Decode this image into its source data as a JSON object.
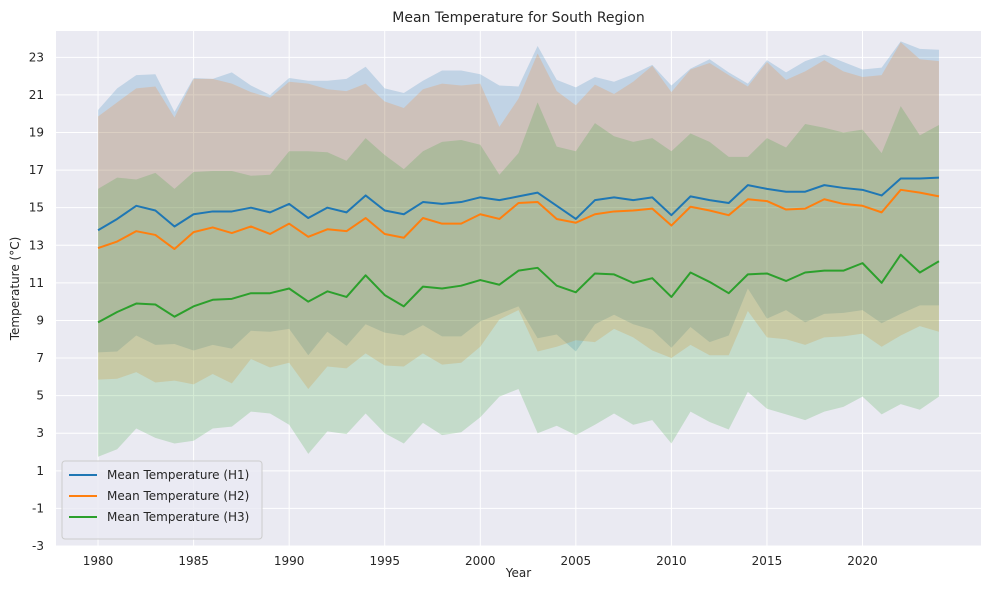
{
  "chart_data": {
    "type": "line",
    "title": "Mean Temperature for South Region",
    "xlabel": "Year",
    "ylabel": "Temperature (°C)",
    "xlim": [
      1977.8,
      2026.2
    ],
    "ylim": [
      -3,
      24.4
    ],
    "x_ticks": [
      1980,
      1985,
      1990,
      1995,
      2000,
      2005,
      2010,
      2015,
      2020
    ],
    "y_ticks": [
      -3,
      -1,
      1,
      3,
      5,
      7,
      9,
      11,
      13,
      15,
      17,
      19,
      21,
      23
    ],
    "grid": true,
    "legend_position": "lower-left",
    "x": [
      1980,
      1981,
      1982,
      1983,
      1984,
      1985,
      1986,
      1987,
      1988,
      1989,
      1990,
      1991,
      1992,
      1993,
      1994,
      1995,
      1996,
      1997,
      1998,
      1999,
      2000,
      2001,
      2002,
      2003,
      2004,
      2005,
      2006,
      2007,
      2008,
      2009,
      2010,
      2011,
      2012,
      2013,
      2014,
      2015,
      2016,
      2017,
      2018,
      2019,
      2020,
      2021,
      2022,
      2023,
      2024
    ],
    "series": [
      {
        "name": "Mean Temperature (H1)",
        "color": "#1f77b4",
        "values": [
          13.8,
          14.4,
          15.1,
          14.85,
          14.0,
          14.65,
          14.8,
          14.8,
          15.0,
          14.75,
          15.2,
          14.45,
          15.0,
          14.75,
          15.65,
          14.85,
          14.65,
          15.3,
          15.2,
          15.3,
          15.55,
          15.4,
          15.6,
          15.8,
          15.1,
          14.4,
          15.4,
          15.55,
          15.4,
          15.55,
          14.6,
          15.6,
          15.4,
          15.25,
          16.2,
          16.0,
          15.85,
          15.85,
          16.2,
          16.05,
          15.95,
          15.65,
          16.55,
          16.55,
          16.6
        ],
        "upper": [
          20.2,
          21.35,
          22.05,
          22.1,
          20.1,
          21.9,
          21.85,
          22.2,
          21.5,
          21.0,
          21.9,
          21.75,
          21.75,
          21.85,
          22.5,
          21.35,
          21.1,
          21.75,
          22.3,
          22.3,
          22.1,
          21.5,
          21.45,
          23.6,
          21.8,
          21.4,
          21.95,
          21.7,
          22.1,
          22.6,
          21.5,
          22.4,
          22.9,
          22.2,
          21.6,
          22.85,
          22.2,
          22.8,
          23.15,
          22.75,
          22.35,
          22.45,
          23.85,
          23.45,
          23.4
        ],
        "lower": [
          7.3,
          7.35,
          8.2,
          7.7,
          7.75,
          7.4,
          7.7,
          7.5,
          8.45,
          8.4,
          8.55,
          7.15,
          8.4,
          7.65,
          8.8,
          8.35,
          8.2,
          8.75,
          8.15,
          8.15,
          8.95,
          9.35,
          9.75,
          8.05,
          8.25,
          7.35,
          8.8,
          9.3,
          8.8,
          8.5,
          7.55,
          8.65,
          7.85,
          8.2,
          10.7,
          9.1,
          9.55,
          8.9,
          9.35,
          9.4,
          9.55,
          8.85,
          9.35,
          9.8,
          9.8
        ]
      },
      {
        "name": "Mean Temperature (H2)",
        "color": "#ff7f0e",
        "values": [
          12.85,
          13.2,
          13.75,
          13.55,
          12.8,
          13.7,
          13.95,
          13.65,
          14.0,
          13.6,
          14.15,
          13.45,
          13.85,
          13.75,
          14.45,
          13.6,
          13.4,
          14.45,
          14.15,
          14.15,
          14.65,
          14.4,
          15.25,
          15.3,
          14.4,
          14.2,
          14.65,
          14.8,
          14.85,
          14.95,
          14.05,
          15.05,
          14.85,
          14.6,
          15.45,
          15.35,
          14.9,
          14.95,
          15.45,
          15.2,
          15.1,
          14.75,
          15.95,
          15.8,
          15.6
        ],
        "upper": [
          19.85,
          20.6,
          21.35,
          21.45,
          19.8,
          21.85,
          21.85,
          21.6,
          21.15,
          20.85,
          21.7,
          21.6,
          21.3,
          21.2,
          21.6,
          20.65,
          20.3,
          21.3,
          21.6,
          21.5,
          21.6,
          19.3,
          20.8,
          23.2,
          21.2,
          20.45,
          21.55,
          21.05,
          21.7,
          22.55,
          21.15,
          22.35,
          22.7,
          22.05,
          21.45,
          22.75,
          21.8,
          22.25,
          22.85,
          22.25,
          21.95,
          22.05,
          23.8,
          22.9,
          22.8
        ],
        "lower": [
          5.85,
          5.9,
          6.25,
          5.7,
          5.8,
          5.6,
          6.15,
          5.65,
          6.95,
          6.5,
          6.75,
          5.35,
          6.55,
          6.45,
          7.25,
          6.6,
          6.55,
          7.25,
          6.65,
          6.75,
          7.6,
          9.05,
          9.55,
          7.35,
          7.6,
          7.95,
          7.85,
          8.55,
          8.1,
          7.4,
          7.0,
          7.7,
          7.15,
          7.15,
          9.5,
          8.1,
          8.0,
          7.7,
          8.1,
          8.15,
          8.3,
          7.6,
          8.2,
          8.7,
          8.4
        ]
      },
      {
        "name": "Mean Temperature (H3)",
        "color": "#2ca02c",
        "values": [
          8.9,
          9.45,
          9.9,
          9.85,
          9.2,
          9.75,
          10.1,
          10.15,
          10.45,
          10.45,
          10.7,
          10.0,
          10.55,
          10.25,
          11.4,
          10.35,
          9.75,
          10.8,
          10.7,
          10.85,
          11.15,
          10.9,
          11.65,
          11.8,
          10.85,
          10.5,
          11.5,
          11.45,
          11.0,
          11.25,
          10.25,
          11.55,
          11.05,
          10.45,
          11.45,
          11.5,
          11.1,
          11.55,
          11.65,
          11.65,
          12.05,
          11.0,
          12.5,
          11.55,
          12.15
        ],
        "upper": [
          16.0,
          16.6,
          16.5,
          16.85,
          16.0,
          16.9,
          16.95,
          16.95,
          16.7,
          16.75,
          18.0,
          18.0,
          17.95,
          17.5,
          18.7,
          17.8,
          17.05,
          18.0,
          18.5,
          18.6,
          18.35,
          16.75,
          17.9,
          20.6,
          18.25,
          18.0,
          19.5,
          18.8,
          18.5,
          18.7,
          18.0,
          18.95,
          18.5,
          17.7,
          17.7,
          18.7,
          18.2,
          19.45,
          19.25,
          19.0,
          19.15,
          17.9,
          20.4,
          18.85,
          19.4
        ],
        "lower": [
          1.75,
          2.15,
          3.25,
          2.75,
          2.45,
          2.6,
          3.25,
          3.35,
          4.15,
          4.05,
          3.45,
          1.9,
          3.1,
          2.95,
          4.05,
          3.0,
          2.45,
          3.55,
          2.9,
          3.05,
          3.85,
          4.95,
          5.35,
          3.0,
          3.4,
          2.9,
          3.45,
          4.05,
          3.45,
          3.7,
          2.45,
          4.15,
          3.6,
          3.2,
          5.2,
          4.3,
          4.0,
          3.7,
          4.15,
          4.4,
          4.95,
          4.0,
          4.55,
          4.25,
          4.95
        ]
      }
    ]
  }
}
